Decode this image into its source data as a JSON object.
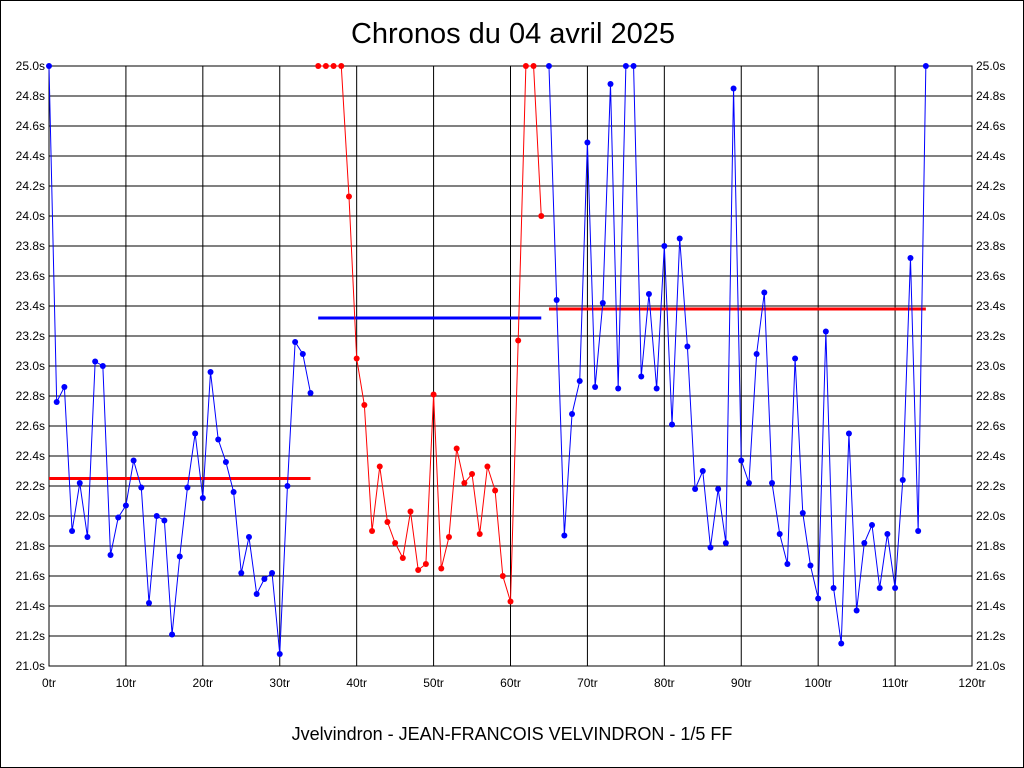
{
  "chart_data": {
    "type": "line",
    "title": "Chronos du 04 avril 2025",
    "subtitle": "Jvelvindron - JEAN-FRANCOIS VELVINDRON - 1/5 FF",
    "xlim": [
      0,
      120
    ],
    "ylim": [
      21.0,
      25.0
    ],
    "x_ticks": [
      {
        "value": 0,
        "label": "0tr"
      },
      {
        "value": 10,
        "label": "10tr"
      },
      {
        "value": 20,
        "label": "20tr"
      },
      {
        "value": 30,
        "label": "30tr"
      },
      {
        "value": 40,
        "label": "40tr"
      },
      {
        "value": 50,
        "label": "50tr"
      },
      {
        "value": 60,
        "label": "60tr"
      },
      {
        "value": 70,
        "label": "70tr"
      },
      {
        "value": 80,
        "label": "80tr"
      },
      {
        "value": 90,
        "label": "90tr"
      },
      {
        "value": 100,
        "label": "100tr"
      },
      {
        "value": 110,
        "label": "110tr"
      },
      {
        "value": 120,
        "label": "120tr"
      }
    ],
    "y_ticks": [
      {
        "value": 21.0,
        "label": "21.0s"
      },
      {
        "value": 21.2,
        "label": "21.2s"
      },
      {
        "value": 21.4,
        "label": "21.4s"
      },
      {
        "value": 21.6,
        "label": "21.6s"
      },
      {
        "value": 21.8,
        "label": "21.8s"
      },
      {
        "value": 22.0,
        "label": "22.0s"
      },
      {
        "value": 22.2,
        "label": "22.2s"
      },
      {
        "value": 22.4,
        "label": "22.4s"
      },
      {
        "value": 22.6,
        "label": "22.6s"
      },
      {
        "value": 22.8,
        "label": "22.8s"
      },
      {
        "value": 23.0,
        "label": "23.0s"
      },
      {
        "value": 23.2,
        "label": "23.2s"
      },
      {
        "value": 23.4,
        "label": "23.4s"
      },
      {
        "value": 23.6,
        "label": "23.6s"
      },
      {
        "value": 23.8,
        "label": "23.8s"
      },
      {
        "value": 24.0,
        "label": "24.0s"
      },
      {
        "value": 24.2,
        "label": "24.2s"
      },
      {
        "value": 24.4,
        "label": "24.4s"
      },
      {
        "value": 24.6,
        "label": "24.6s"
      },
      {
        "value": 24.8,
        "label": "24.8s"
      },
      {
        "value": 25.0,
        "label": "25.0s"
      }
    ],
    "grid": true,
    "axis_labels_both_sides": true,
    "series": [
      {
        "color": "#0000ff",
        "points": [
          [
            0,
            25.0
          ],
          [
            1,
            22.76
          ],
          [
            2,
            22.86
          ],
          [
            3,
            21.9
          ],
          [
            4,
            22.22
          ],
          [
            5,
            21.86
          ],
          [
            6,
            23.03
          ],
          [
            7,
            23.0
          ],
          [
            8,
            21.74
          ],
          [
            9,
            21.99
          ],
          [
            10,
            22.07
          ],
          [
            11,
            22.37
          ],
          [
            12,
            22.19
          ],
          [
            13,
            21.42
          ],
          [
            14,
            22.0
          ],
          [
            15,
            21.97
          ],
          [
            16,
            21.21
          ],
          [
            17,
            21.73
          ],
          [
            18,
            22.19
          ],
          [
            19,
            22.55
          ],
          [
            20,
            22.12
          ],
          [
            21,
            22.96
          ],
          [
            22,
            22.51
          ],
          [
            23,
            22.36
          ],
          [
            24,
            22.16
          ],
          [
            25,
            21.62
          ],
          [
            26,
            21.86
          ],
          [
            27,
            21.48
          ],
          [
            28,
            21.58
          ],
          [
            29,
            21.62
          ],
          [
            30,
            21.08
          ],
          [
            31,
            22.2
          ],
          [
            32,
            23.16
          ],
          [
            33,
            23.08
          ],
          [
            34,
            22.82
          ]
        ]
      },
      {
        "color": "#ff0000",
        "points": [
          [
            35,
            25.0
          ],
          [
            36,
            25.0
          ],
          [
            37,
            25.0
          ],
          [
            38,
            25.0
          ],
          [
            39,
            24.13
          ],
          [
            40,
            23.05
          ],
          [
            41,
            22.74
          ],
          [
            42,
            21.9
          ],
          [
            43,
            22.33
          ],
          [
            44,
            21.96
          ],
          [
            45,
            21.82
          ],
          [
            46,
            21.72
          ],
          [
            47,
            22.03
          ],
          [
            48,
            21.64
          ],
          [
            49,
            21.68
          ],
          [
            50,
            22.81
          ],
          [
            51,
            21.65
          ],
          [
            52,
            21.86
          ],
          [
            53,
            22.45
          ],
          [
            54,
            22.22
          ],
          [
            55,
            22.28
          ],
          [
            56,
            21.88
          ],
          [
            57,
            22.33
          ],
          [
            58,
            22.17
          ],
          [
            59,
            21.6
          ],
          [
            60,
            21.43
          ],
          [
            61,
            23.17
          ],
          [
            62,
            25.0
          ],
          [
            63,
            25.0
          ],
          [
            64,
            24.0
          ]
        ]
      },
      {
        "color": "#0000ff",
        "points": [
          [
            65,
            25.0
          ],
          [
            66,
            23.44
          ],
          [
            67,
            21.87
          ],
          [
            68,
            22.68
          ],
          [
            69,
            22.9
          ],
          [
            70,
            24.49
          ],
          [
            71,
            22.86
          ],
          [
            72,
            23.42
          ],
          [
            73,
            24.88
          ],
          [
            74,
            22.85
          ],
          [
            75,
            25.0
          ],
          [
            76,
            25.0
          ],
          [
            77,
            22.93
          ],
          [
            78,
            23.48
          ],
          [
            79,
            22.85
          ],
          [
            80,
            23.8
          ],
          [
            81,
            22.61
          ],
          [
            82,
            23.85
          ],
          [
            83,
            23.13
          ],
          [
            84,
            22.18
          ],
          [
            85,
            22.3
          ],
          [
            86,
            21.79
          ],
          [
            87,
            22.18
          ],
          [
            88,
            21.82
          ],
          [
            89,
            24.85
          ],
          [
            90,
            22.37
          ],
          [
            91,
            22.22
          ],
          [
            92,
            23.08
          ],
          [
            93,
            23.49
          ],
          [
            94,
            22.22
          ],
          [
            95,
            21.88
          ],
          [
            96,
            21.68
          ],
          [
            97,
            23.05
          ],
          [
            98,
            22.02
          ],
          [
            99,
            21.67
          ],
          [
            100,
            21.45
          ],
          [
            101,
            23.23
          ],
          [
            102,
            21.52
          ],
          [
            103,
            21.15
          ],
          [
            104,
            22.55
          ],
          [
            105,
            21.37
          ],
          [
            106,
            21.82
          ],
          [
            107,
            21.94
          ],
          [
            108,
            21.52
          ],
          [
            109,
            21.88
          ],
          [
            110,
            21.52
          ],
          [
            111,
            22.24
          ],
          [
            112,
            23.72
          ],
          [
            113,
            21.9
          ],
          [
            114,
            25.0
          ]
        ]
      }
    ],
    "average_lines": [
      {
        "color": "#ff0000",
        "x_start": 0,
        "x_end": 34,
        "y": 22.25
      },
      {
        "color": "#0000ff",
        "x_start": 35,
        "x_end": 64,
        "y": 23.32
      },
      {
        "color": "#ff0000",
        "x_start": 65,
        "x_end": 114,
        "y": 23.38
      }
    ]
  }
}
